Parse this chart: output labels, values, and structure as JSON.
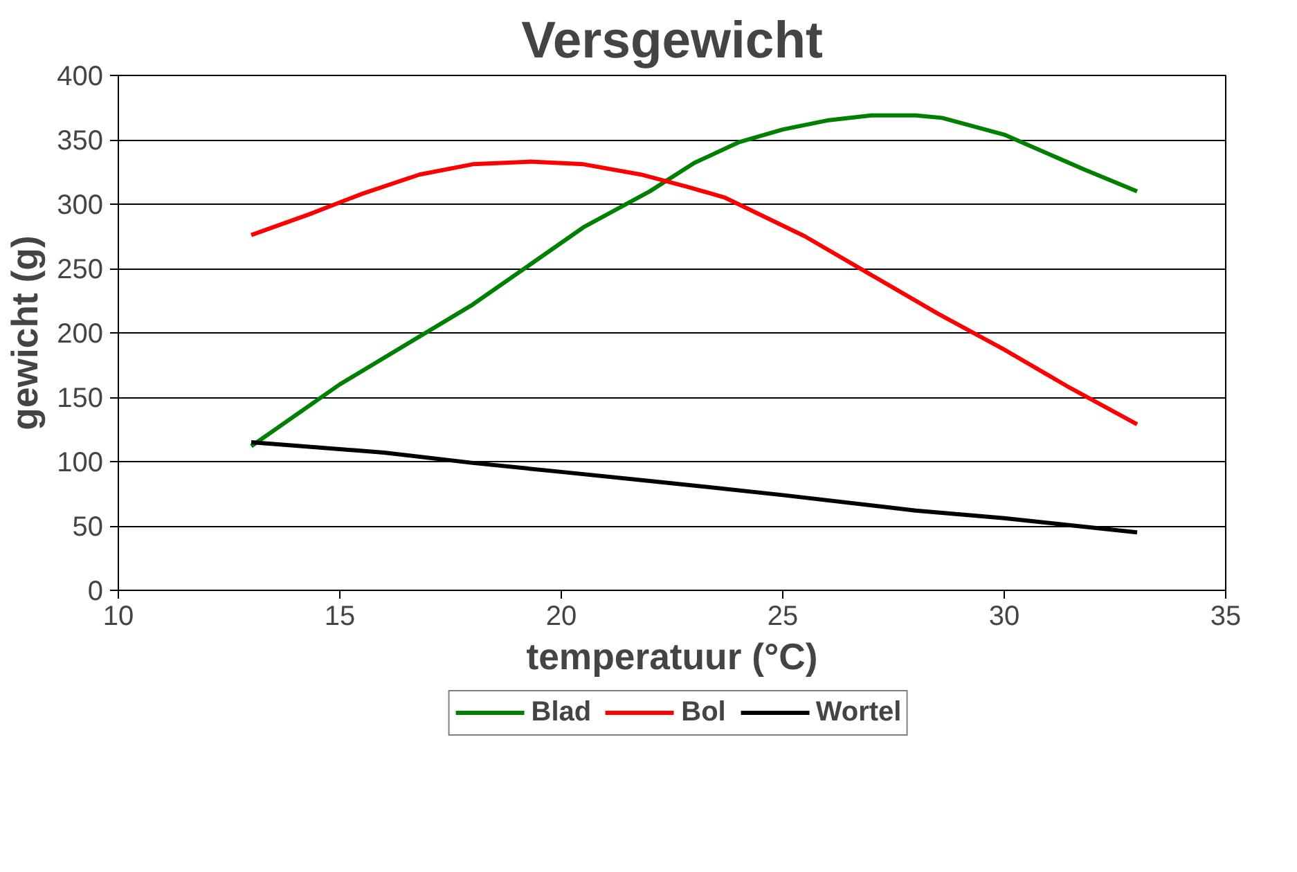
{
  "chart_data": {
    "type": "line",
    "title": "Versgewicht",
    "xlabel": "temperatuur (°C)",
    "ylabel": "gewicht (g)",
    "xlim": [
      10,
      35
    ],
    "xticks": [
      10,
      15,
      20,
      25,
      30,
      35
    ],
    "ylim": [
      0,
      400
    ],
    "yticks": [
      0,
      50,
      100,
      150,
      200,
      250,
      300,
      350,
      400
    ],
    "grid": "y",
    "legend": "bottom",
    "marker": "none",
    "line_style": "solid",
    "series": [
      {
        "name": "Blad",
        "color": "#008000",
        "x": [
          13,
          15,
          18,
          20.5,
          22,
          23,
          24,
          25,
          26,
          27,
          28,
          28.6,
          30,
          31.8,
          33
        ],
        "values": [
          112,
          160,
          222,
          282,
          310,
          332,
          348,
          358,
          365,
          369,
          369,
          367,
          354,
          327,
          310
        ]
      },
      {
        "name": "Bol",
        "color": "#ff0000",
        "x": [
          13,
          14.3,
          15.5,
          16.8,
          18,
          19.3,
          20.5,
          21.8,
          22.9,
          23.7,
          25.5,
          27,
          28.5,
          30,
          31.5,
          33
        ],
        "values": [
          276,
          292,
          308,
          323,
          331,
          333,
          331,
          323,
          313,
          305,
          275,
          245,
          215,
          187,
          157,
          129
        ]
      },
      {
        "name": "Wortel",
        "color": "#000000",
        "x": [
          13,
          16,
          18,
          20,
          22,
          25,
          28,
          30,
          33
        ],
        "values": [
          115,
          107,
          99,
          92,
          85,
          74,
          62,
          56,
          45
        ]
      }
    ]
  }
}
